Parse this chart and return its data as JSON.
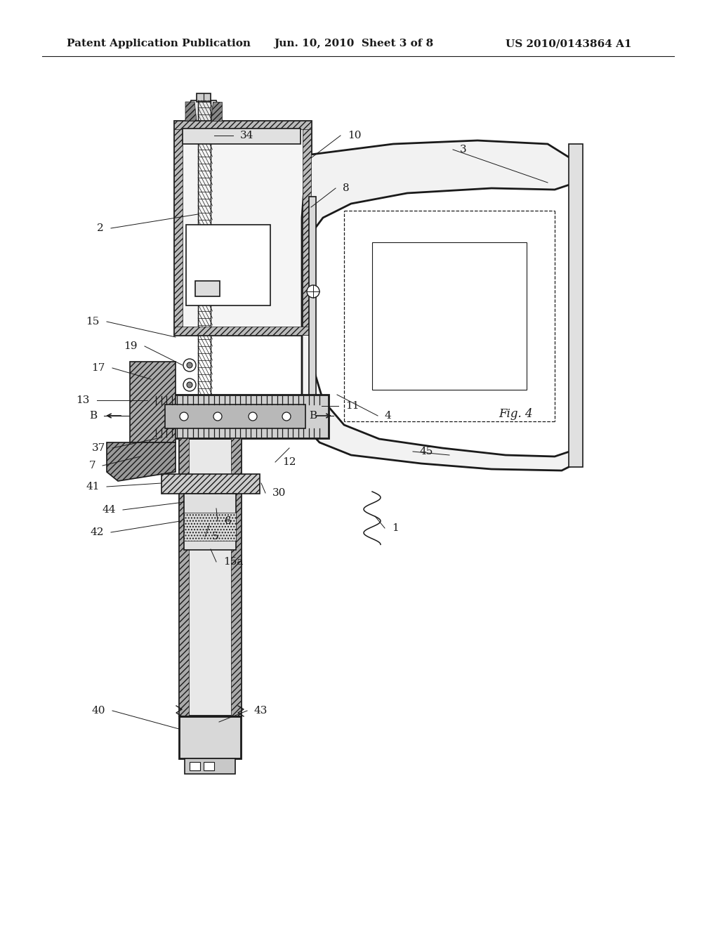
{
  "background_color": "#ffffff",
  "header_text": "Patent Application Publication",
  "header_date": "Jun. 10, 2010  Sheet 3 of 8",
  "header_patent": "US 2010/0143864 A1",
  "fig_label": "Fig. 4",
  "line_color": "#1a1a1a",
  "label_fontsize": 11,
  "header_fontsize": 11
}
